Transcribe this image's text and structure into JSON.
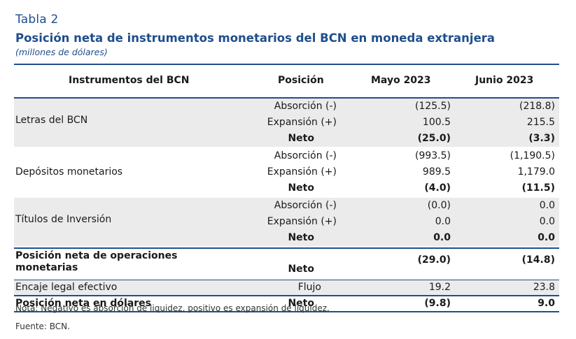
{
  "tabla_label": "Tabla 2",
  "title": "Posición neta de instrumentos monetarios del BCN en moneda extranjera",
  "subtitle": "(millones de dólares)",
  "headers": {
    "instrument": "Instrumentos del BCN",
    "position": "Posición",
    "may": "Mayo 2023",
    "jun": "Junio 2023"
  },
  "groups": [
    {
      "label": "Letras del BCN",
      "rows": [
        {
          "pos": "Absorción (-)",
          "may": "(125.5)",
          "jun": "(218.8)"
        },
        {
          "pos": "Expansión (+)",
          "may": "100.5",
          "jun": "215.5"
        },
        {
          "pos": "Neto",
          "may": "(25.0)",
          "jun": "(3.3)"
        }
      ]
    },
    {
      "label": "Depósitos monetarios",
      "rows": [
        {
          "pos": "Absorción (-)",
          "may": "(993.5)",
          "jun": "(1,190.5)"
        },
        {
          "pos": "Expansión (+)",
          "may": "989.5",
          "jun": "1,179.0"
        },
        {
          "pos": "Neto",
          "may": "(4.0)",
          "jun": "(11.5)"
        }
      ]
    },
    {
      "label": "Títulos de Inversión",
      "rows": [
        {
          "pos": "Absorción (-)",
          "may": "(0.0)",
          "jun": "0.0"
        },
        {
          "pos": "Expansión (+)",
          "may": "0.0",
          "jun": "0.0"
        },
        {
          "pos": "Neto",
          "may": "0.0",
          "jun": "0.0"
        }
      ]
    }
  ],
  "operations": {
    "label_line1": "Posición neta de operaciones",
    "label_line2": "monetarias",
    "pos": "Neto",
    "may": "(29.0)",
    "jun": "(14.8)"
  },
  "encaje": {
    "label": "Encaje legal efectivo",
    "pos": "Flujo",
    "may": "19.2",
    "jun": "23.8"
  },
  "net_dollars": {
    "label": "Posición neta en dólares",
    "pos": "Neto",
    "may": "(9.8)",
    "jun": "9.0"
  },
  "note": "Nota: Negativo es absorción de liquidez, positivo es expansión de liquidez.",
  "source": "Fuente: BCN."
}
